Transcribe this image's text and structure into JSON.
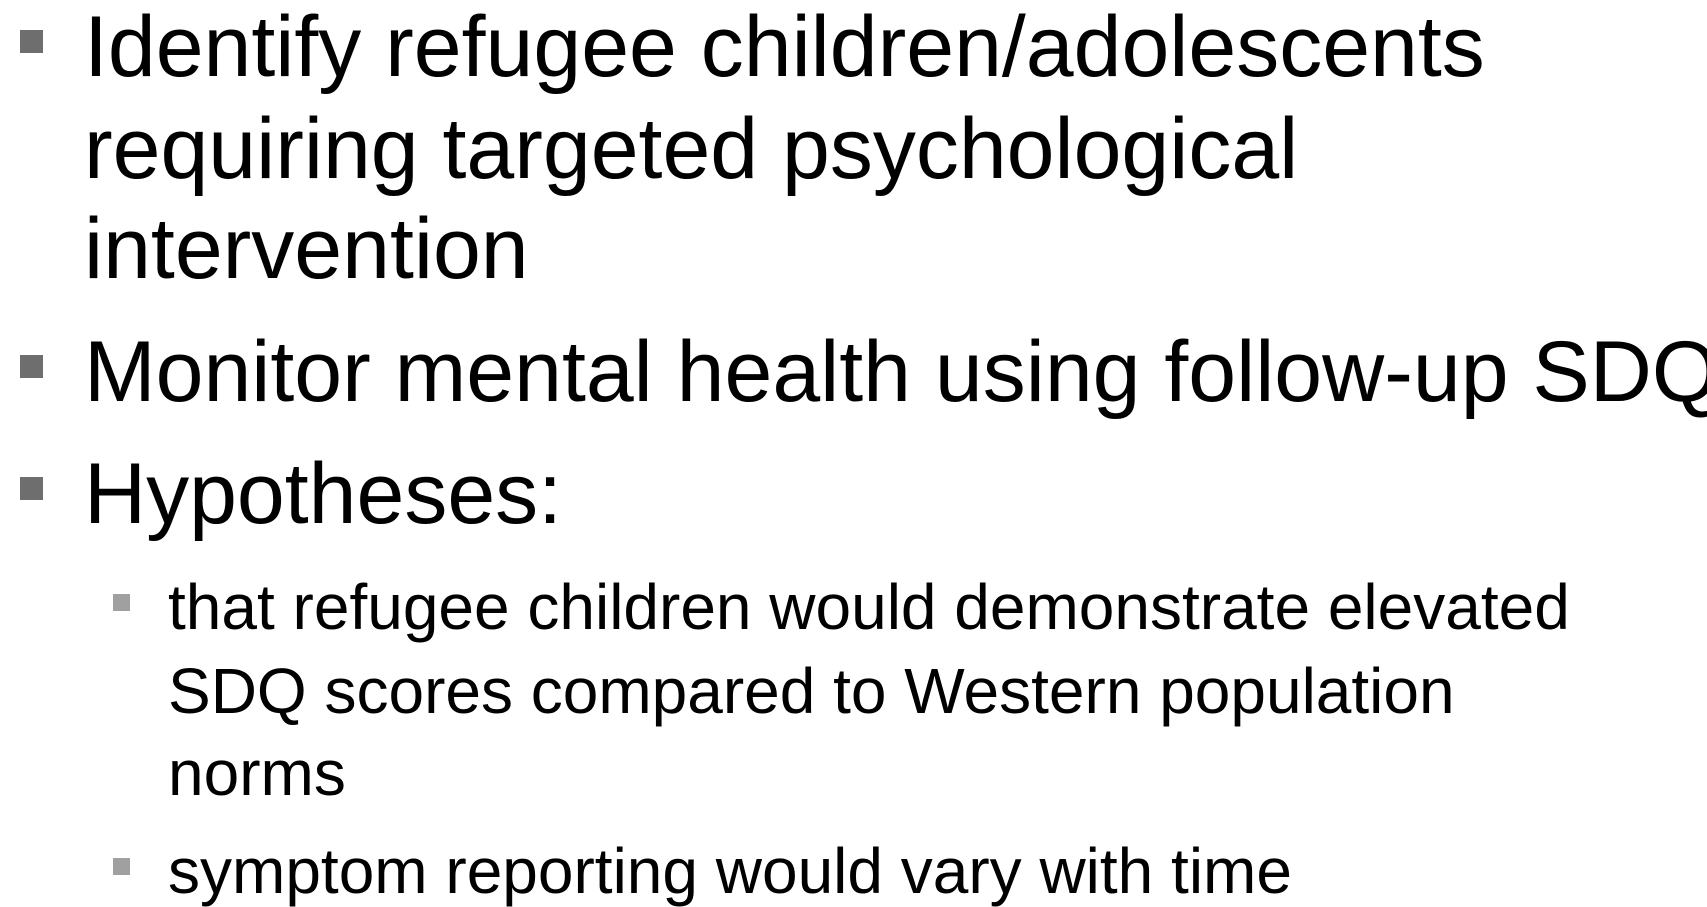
{
  "bullets": [
    {
      "lines": [
        "Identify refugee children/adolescents",
        "requiring targeted psychological",
        "intervention"
      ]
    },
    {
      "lines": [
        "Monitor mental health using follow-up SDQ"
      ]
    },
    {
      "lines": [
        "Hypotheses:"
      ],
      "sub_bullets": [
        {
          "lines": [
            "that refugee children would demonstrate elevated",
            "SDQ scores compared to Western population",
            "norms"
          ]
        },
        {
          "lines": [
            "symptom reporting would vary with time"
          ]
        }
      ]
    }
  ]
}
